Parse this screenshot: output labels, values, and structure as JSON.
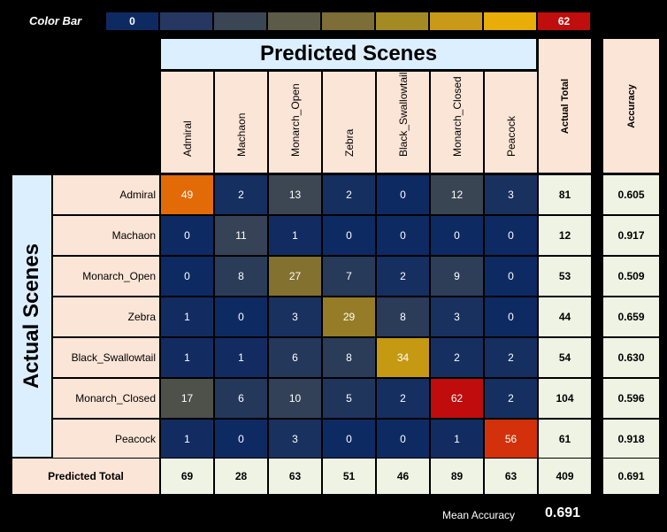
{
  "colorbar": {
    "label": "Color Bar",
    "min_label": "0",
    "max_label": "62",
    "colors": [
      "#0e2a62",
      "#263861",
      "#3b4654",
      "#5c5b47",
      "#7d6d36",
      "#a48a22",
      "#c99a17",
      "#e9ad07",
      "#c00d0d"
    ]
  },
  "chart_data": {
    "type": "heatmap",
    "title": "Predicted Scenes",
    "ylabel": "Actual Scenes",
    "x_categories": [
      "Admiral",
      "Machaon",
      "Monarch_Open",
      "Zebra",
      "Black_Swallowtail",
      "Monarch_Closed",
      "Peacock"
    ],
    "y_categories": [
      "Admiral",
      "Machaon",
      "Monarch_Open",
      "Zebra",
      "Black_Swallowtail",
      "Monarch_Closed",
      "Peacock"
    ],
    "matrix": [
      [
        49,
        2,
        13,
        2,
        0,
        12,
        3
      ],
      [
        0,
        11,
        1,
        0,
        0,
        0,
        0
      ],
      [
        0,
        8,
        27,
        7,
        2,
        9,
        0
      ],
      [
        1,
        0,
        3,
        29,
        8,
        3,
        0
      ],
      [
        1,
        1,
        6,
        8,
        34,
        2,
        2
      ],
      [
        17,
        6,
        10,
        5,
        2,
        62,
        2
      ],
      [
        1,
        0,
        3,
        0,
        0,
        1,
        56
      ]
    ],
    "actual_total_label": "Actual Total",
    "accuracy_label": "Accuracy",
    "actual_totals": [
      "81",
      "12",
      "53",
      "44",
      "54",
      "104",
      "61"
    ],
    "accuracies": [
      "0.605",
      "0.917",
      "0.509",
      "0.659",
      "0.630",
      "0.596",
      "0.918"
    ],
    "predicted_total_label": "Predicted Total",
    "predicted_totals": [
      "69",
      "28",
      "63",
      "51",
      "46",
      "89",
      "63"
    ],
    "grand_total": "409",
    "overall_accuracy": "0.691",
    "color_range": [
      0,
      62
    ]
  },
  "mean_accuracy": {
    "label": "Mean Accuracy",
    "value": "0.691"
  }
}
